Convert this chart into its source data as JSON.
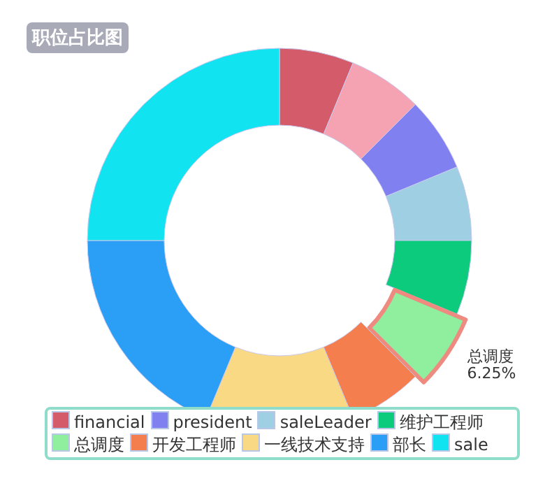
{
  "chart_data": {
    "type": "donut",
    "title": "职位占比图",
    "categories": [
      "financial",
      null,
      "president",
      "saleLeader",
      "维护工程师",
      "总调度",
      "开发工程师",
      "一线技术支持",
      "部长",
      "sale"
    ],
    "values": [
      6.25,
      6.25,
      6.25,
      6.25,
      6.25,
      6.25,
      6.25,
      12.5,
      18.75,
      25
    ],
    "colors": [
      "#d45b6a",
      "#f5a3b3",
      "#8080f0",
      "#9fcfe3",
      "#0ccb7c",
      "#8fef9f",
      "#f47e4e",
      "#fad985",
      "#2b9ef5",
      "#12e3f0"
    ],
    "value_labels": [
      null,
      null,
      null,
      null,
      null,
      "6.25%",
      null,
      null,
      null,
      null
    ],
    "legend": "bottom"
  }
}
